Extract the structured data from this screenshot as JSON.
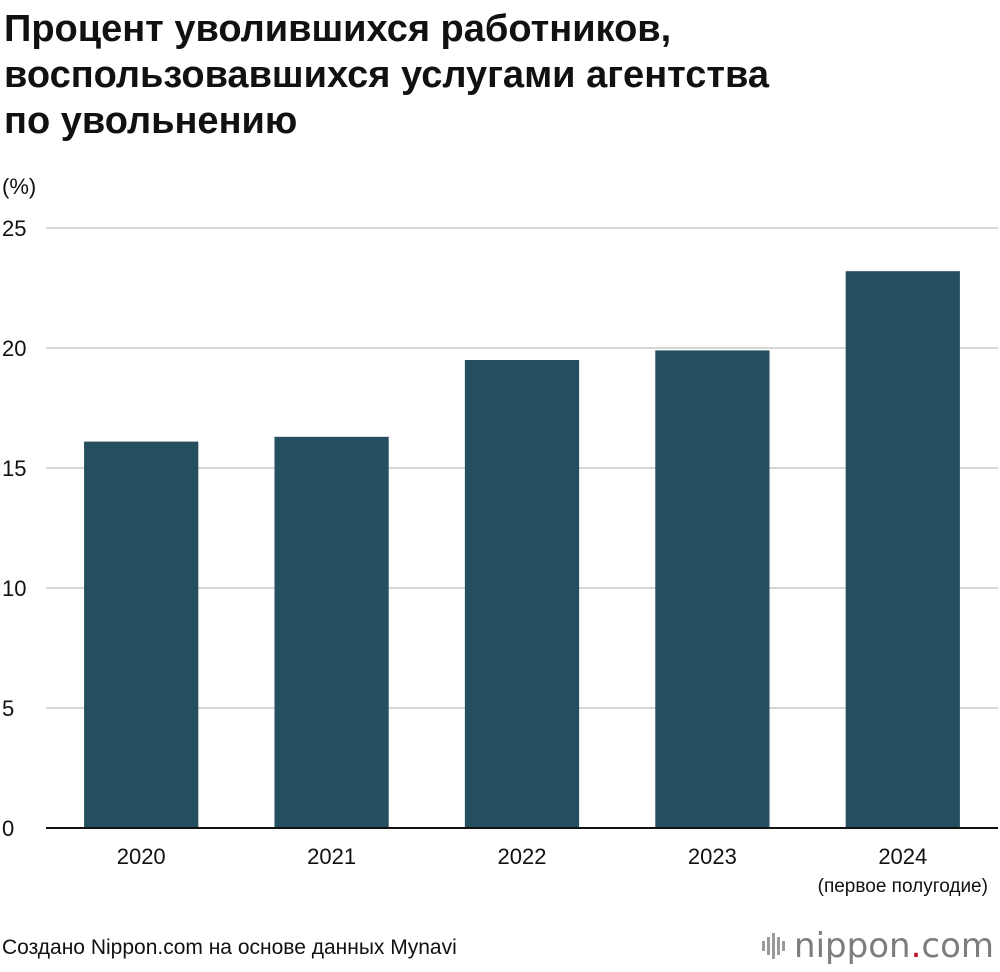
{
  "chart_data": {
    "type": "bar",
    "title_lines": [
      "Процент уволившихся работников,",
      "воспользовавшихся услугами агентства",
      "по увольнению"
    ],
    "y_unit": "(%)",
    "categories": [
      "2020",
      "2021",
      "2022",
      "2023",
      "2024"
    ],
    "category_sublabels": [
      "",
      "",
      "",
      "",
      "(первое полугодие)"
    ],
    "values": [
      16.1,
      16.3,
      19.5,
      19.9,
      23.2
    ],
    "ylim": [
      0,
      25
    ],
    "yticks": [
      0,
      5,
      10,
      15,
      20,
      25
    ],
    "grid": true,
    "bar_color": "#234f5e",
    "grid_color": "#c8c8c8",
    "axis_color": "#111111"
  },
  "footer": {
    "source": "Создано Nippon.com на основе данных Mynavi",
    "logo_word": "nippon",
    "logo_dot": ".",
    "logo_suffix": "com",
    "logo_bars_icon": "logo-bars-icon",
    "logo_dot_color": "#c8102e"
  }
}
